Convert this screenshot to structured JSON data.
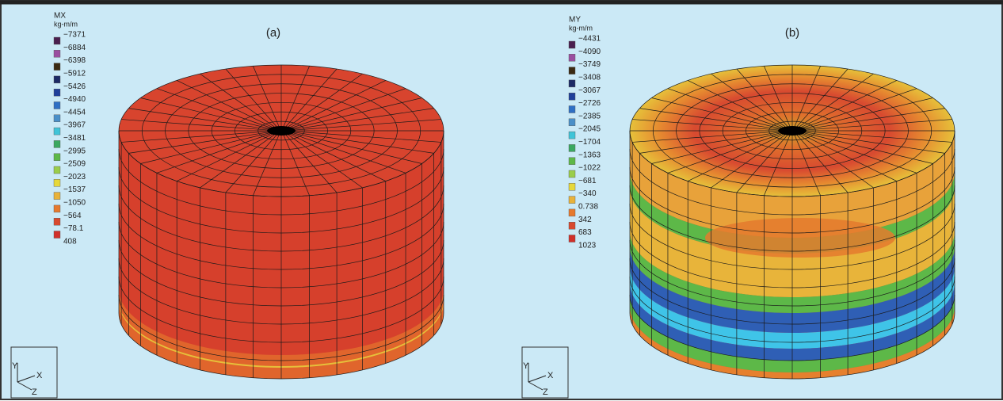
{
  "palette": [
    "#4a1f4f",
    "#9a4fa0",
    "#3b2a12",
    "#1c2a66",
    "#1f3f9a",
    "#2f6fc4",
    "#4a8fc8",
    "#3fc4d8",
    "#3aa860",
    "#5db848",
    "#9acd4a",
    "#e6d83a",
    "#e8b23a",
    "#e67a2e",
    "#d8492e",
    "#d0302a"
  ],
  "panels": [
    {
      "label": "(a)",
      "legend": {
        "title": "MX",
        "unit": "kg-m/m",
        "values": [
          "−7371",
          "−6884",
          "−6398",
          "−5912",
          "−5426",
          "−4940",
          "−4454",
          "−3967",
          "−3481",
          "−2995",
          "−2509",
          "−2023",
          "−1537",
          "−1050",
          "−564",
          "−78.1",
          "408"
        ]
      },
      "axes": {
        "y": "Y",
        "x": "X",
        "z": "Z"
      }
    },
    {
      "label": "(b)",
      "legend": {
        "title": "MY",
        "unit": "kg-m/m",
        "values": [
          "−4431",
          "−4090",
          "−3749",
          "−3408",
          "−3067",
          "−2726",
          "−2385",
          "−2045",
          "−1704",
          "−1363",
          "−1022",
          "−681",
          "−340",
          "0.738",
          "342",
          "683",
          "1023"
        ]
      },
      "axes": {
        "y": "Y",
        "x": "X",
        "z": "Z"
      }
    }
  ]
}
